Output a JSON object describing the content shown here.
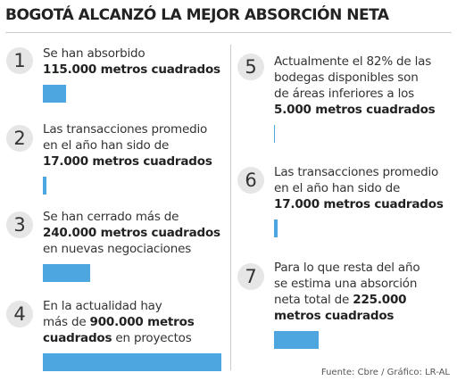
{
  "header": {
    "title": "BOGOTÁ ALCANZÓ LA MEJOR ABSORCIÓN NETA"
  },
  "bar_color": "#4da6e0",
  "items": [
    {
      "number": "1",
      "value": 115000,
      "lines": [
        [
          {
            "text": "Se han absorbido",
            "bold": false
          }
        ],
        [
          {
            "text": "115.000 metros cuadrados",
            "bold": true
          }
        ]
      ]
    },
    {
      "number": "2",
      "value": 17000,
      "lines": [
        [
          {
            "text": "Las transacciones promedio",
            "bold": false
          }
        ],
        [
          {
            "text": "en el año han sido de",
            "bold": false
          }
        ],
        [
          {
            "text": "17.000 metros cuadrados",
            "bold": true
          }
        ]
      ]
    },
    {
      "number": "3",
      "value": 240000,
      "lines": [
        [
          {
            "text": "Se han cerrado más de",
            "bold": false
          }
        ],
        [
          {
            "text": "240.000 metros cuadrados",
            "bold": true
          }
        ],
        [
          {
            "text": "en nuevas negociaciones",
            "bold": false
          }
        ]
      ]
    },
    {
      "number": "4",
      "value": 900000,
      "lines": [
        [
          {
            "text": "En la actualidad hay",
            "bold": false
          }
        ],
        [
          {
            "text": "más de ",
            "bold": false
          },
          {
            "text": "900.000 metros",
            "bold": true
          }
        ],
        [
          {
            "text": "cuadrados",
            "bold": true
          },
          {
            "text": " en proyectos",
            "bold": false
          }
        ]
      ]
    },
    {
      "number": "5",
      "value": 5000,
      "lines": [
        [
          {
            "text": "Actualmente el 82% de las",
            "bold": false
          }
        ],
        [
          {
            "text": "bodegas disponibles son",
            "bold": false
          }
        ],
        [
          {
            "text": "de áreas inferiores a los",
            "bold": false
          }
        ],
        [
          {
            "text": "5.000 metros cuadrados",
            "bold": true
          }
        ]
      ]
    },
    {
      "number": "6",
      "value": 17000,
      "lines": [
        [
          {
            "text": "Las transacciones promedio",
            "bold": false
          }
        ],
        [
          {
            "text": "en el año han sido de",
            "bold": false
          }
        ],
        [
          {
            "text": "17.000 metros cuadrados",
            "bold": true
          }
        ]
      ]
    },
    {
      "number": "7",
      "value": 225000,
      "lines": [
        [
          {
            "text": "Para lo que resta del año",
            "bold": false
          }
        ],
        [
          {
            "text": "se estima una absorción",
            "bold": false
          }
        ],
        [
          {
            "text": "neta total de ",
            "bold": false
          },
          {
            "text": "225.000",
            "bold": true
          }
        ],
        [
          {
            "text": "metros cuadrados",
            "bold": true
          }
        ]
      ]
    }
  ],
  "footer": {
    "source": "Fuente: Cbre / Gráfico: LR-AL"
  }
}
